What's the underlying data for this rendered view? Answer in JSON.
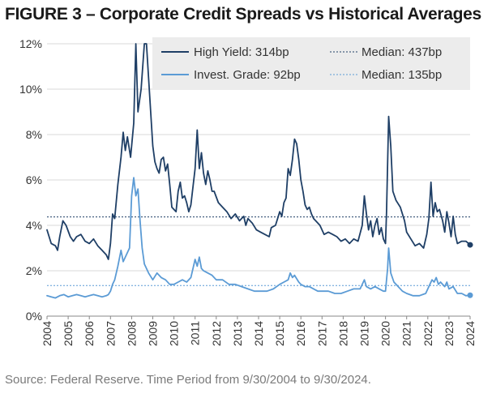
{
  "title": "FIGURE 3 – Corporate Credit Spreads vs Historical Averages",
  "source": "Source: Federal Reserve. Time Period from 9/30/2004 to 9/30/2024.",
  "chart_data": {
    "type": "line",
    "x_range": [
      2004,
      2024
    ],
    "ylim": [
      0,
      12
    ],
    "y_ticks": [
      "0%",
      "2%",
      "4%",
      "6%",
      "8%",
      "10%",
      "12%"
    ],
    "x_ticks": [
      "2004",
      "2005",
      "2006",
      "2007",
      "2008",
      "2009",
      "2010",
      "2011",
      "2012",
      "2013",
      "2014",
      "2015",
      "2016",
      "2017",
      "2018",
      "2019",
      "2020",
      "2021",
      "2022",
      "2023",
      "2024"
    ],
    "legend": {
      "high_yield": "High Yield: 314bp",
      "hy_median": "Median: 437bp",
      "invest_grade": "Invest. Grade: 92bp",
      "ig_median": "Median: 135bp"
    },
    "colors": {
      "high_yield": "#1f3f66",
      "invest_grade": "#5b9bd5",
      "legend_bg": "#ececec"
    },
    "medians": {
      "high_yield": 4.37,
      "invest_grade": 1.35
    },
    "series": [
      {
        "name": "High Yield",
        "points": [
          [
            2004.0,
            3.8
          ],
          [
            2004.2,
            3.2
          ],
          [
            2004.4,
            3.1
          ],
          [
            2004.5,
            2.9
          ],
          [
            2004.6,
            3.5
          ],
          [
            2004.75,
            4.2
          ],
          [
            2004.9,
            4.0
          ],
          [
            2005.1,
            3.5
          ],
          [
            2005.25,
            3.3
          ],
          [
            2005.4,
            3.5
          ],
          [
            2005.6,
            3.6
          ],
          [
            2005.8,
            3.3
          ],
          [
            2006.0,
            3.2
          ],
          [
            2006.2,
            3.4
          ],
          [
            2006.4,
            3.1
          ],
          [
            2006.6,
            2.9
          ],
          [
            2006.8,
            2.7
          ],
          [
            2006.9,
            2.5
          ],
          [
            2007.0,
            3.2
          ],
          [
            2007.1,
            4.5
          ],
          [
            2007.2,
            4.3
          ],
          [
            2007.35,
            5.8
          ],
          [
            2007.5,
            7.0
          ],
          [
            2007.6,
            8.1
          ],
          [
            2007.7,
            7.3
          ],
          [
            2007.8,
            7.9
          ],
          [
            2007.95,
            7.0
          ],
          [
            2008.1,
            8.5
          ],
          [
            2008.2,
            12.0
          ],
          [
            2008.3,
            9.0
          ],
          [
            2008.45,
            10.0
          ],
          [
            2008.6,
            12.0
          ],
          [
            2008.7,
            12.0
          ],
          [
            2008.8,
            10.5
          ],
          [
            2008.9,
            9.0
          ],
          [
            2009.0,
            7.5
          ],
          [
            2009.1,
            6.8
          ],
          [
            2009.2,
            6.5
          ],
          [
            2009.3,
            6.3
          ],
          [
            2009.4,
            6.9
          ],
          [
            2009.5,
            7.0
          ],
          [
            2009.6,
            6.4
          ],
          [
            2009.7,
            6.7
          ],
          [
            2009.8,
            5.8
          ],
          [
            2009.9,
            4.8
          ],
          [
            2010.0,
            4.7
          ],
          [
            2010.1,
            4.6
          ],
          [
            2010.2,
            5.5
          ],
          [
            2010.3,
            5.9
          ],
          [
            2010.4,
            5.2
          ],
          [
            2010.5,
            5.3
          ],
          [
            2010.6,
            5.0
          ],
          [
            2010.7,
            4.6
          ],
          [
            2010.8,
            4.9
          ],
          [
            2011.0,
            6.5
          ],
          [
            2011.1,
            8.2
          ],
          [
            2011.2,
            6.5
          ],
          [
            2011.3,
            7.2
          ],
          [
            2011.4,
            6.3
          ],
          [
            2011.5,
            5.8
          ],
          [
            2011.6,
            6.4
          ],
          [
            2011.7,
            6.0
          ],
          [
            2011.8,
            5.5
          ],
          [
            2011.9,
            5.5
          ],
          [
            2012.1,
            5.0
          ],
          [
            2012.3,
            4.8
          ],
          [
            2012.5,
            4.6
          ],
          [
            2012.7,
            4.3
          ],
          [
            2012.9,
            4.5
          ],
          [
            2013.1,
            4.2
          ],
          [
            2013.3,
            4.4
          ],
          [
            2013.4,
            4.0
          ],
          [
            2013.5,
            4.3
          ],
          [
            2013.7,
            4.1
          ],
          [
            2013.9,
            3.8
          ],
          [
            2014.1,
            3.7
          ],
          [
            2014.3,
            3.6
          ],
          [
            2014.5,
            3.5
          ],
          [
            2014.6,
            3.9
          ],
          [
            2014.8,
            4.0
          ],
          [
            2015.0,
            4.6
          ],
          [
            2015.1,
            4.4
          ],
          [
            2015.2,
            5.0
          ],
          [
            2015.3,
            5.2
          ],
          [
            2015.4,
            6.5
          ],
          [
            2015.5,
            6.2
          ],
          [
            2015.6,
            6.9
          ],
          [
            2015.7,
            7.8
          ],
          [
            2015.8,
            7.6
          ],
          [
            2015.9,
            6.9
          ],
          [
            2016.0,
            6.0
          ],
          [
            2016.1,
            5.5
          ],
          [
            2016.2,
            4.9
          ],
          [
            2016.3,
            4.7
          ],
          [
            2016.4,
            4.8
          ],
          [
            2016.5,
            4.5
          ],
          [
            2016.6,
            4.3
          ],
          [
            2016.7,
            4.2
          ],
          [
            2016.9,
            4.0
          ],
          [
            2017.1,
            3.6
          ],
          [
            2017.3,
            3.7
          ],
          [
            2017.5,
            3.6
          ],
          [
            2017.7,
            3.5
          ],
          [
            2017.9,
            3.3
          ],
          [
            2018.1,
            3.4
          ],
          [
            2018.3,
            3.2
          ],
          [
            2018.5,
            3.4
          ],
          [
            2018.7,
            3.3
          ],
          [
            2018.9,
            4.0
          ],
          [
            2019.0,
            5.3
          ],
          [
            2019.1,
            4.5
          ],
          [
            2019.2,
            3.8
          ],
          [
            2019.3,
            4.2
          ],
          [
            2019.4,
            3.5
          ],
          [
            2019.5,
            4.0
          ],
          [
            2019.6,
            4.3
          ],
          [
            2019.7,
            3.6
          ],
          [
            2019.8,
            3.9
          ],
          [
            2019.9,
            3.4
          ],
          [
            2020.0,
            3.2
          ],
          [
            2020.05,
            4.6
          ],
          [
            2020.15,
            8.8
          ],
          [
            2020.25,
            7.5
          ],
          [
            2020.35,
            5.5
          ],
          [
            2020.5,
            5.1
          ],
          [
            2020.7,
            4.8
          ],
          [
            2020.9,
            4.2
          ],
          [
            2021.0,
            3.7
          ],
          [
            2021.2,
            3.4
          ],
          [
            2021.4,
            3.1
          ],
          [
            2021.6,
            3.2
          ],
          [
            2021.8,
            3.0
          ],
          [
            2021.95,
            3.6
          ],
          [
            2022.05,
            4.3
          ],
          [
            2022.15,
            5.9
          ],
          [
            2022.25,
            4.4
          ],
          [
            2022.35,
            5.0
          ],
          [
            2022.45,
            4.6
          ],
          [
            2022.55,
            4.7
          ],
          [
            2022.7,
            4.2
          ],
          [
            2022.8,
            3.7
          ],
          [
            2022.9,
            4.6
          ],
          [
            2023.0,
            4.1
          ],
          [
            2023.1,
            3.5
          ],
          [
            2023.2,
            4.4
          ],
          [
            2023.3,
            3.6
          ],
          [
            2023.4,
            3.2
          ],
          [
            2023.6,
            3.3
          ],
          [
            2023.8,
            3.3
          ],
          [
            2024.0,
            3.14
          ]
        ]
      },
      {
        "name": "Invest. Grade",
        "points": [
          [
            2004.0,
            0.9
          ],
          [
            2004.2,
            0.85
          ],
          [
            2004.4,
            0.8
          ],
          [
            2004.6,
            0.9
          ],
          [
            2004.8,
            0.95
          ],
          [
            2005.0,
            0.85
          ],
          [
            2005.2,
            0.9
          ],
          [
            2005.4,
            0.95
          ],
          [
            2005.6,
            0.9
          ],
          [
            2005.8,
            0.85
          ],
          [
            2006.0,
            0.9
          ],
          [
            2006.2,
            0.95
          ],
          [
            2006.4,
            0.9
          ],
          [
            2006.6,
            0.85
          ],
          [
            2006.8,
            0.9
          ],
          [
            2006.9,
            0.95
          ],
          [
            2007.0,
            1.1
          ],
          [
            2007.1,
            1.4
          ],
          [
            2007.2,
            1.6
          ],
          [
            2007.35,
            2.2
          ],
          [
            2007.5,
            2.9
          ],
          [
            2007.6,
            2.4
          ],
          [
            2007.75,
            2.7
          ],
          [
            2007.9,
            3.0
          ],
          [
            2008.0,
            5.3
          ],
          [
            2008.1,
            6.1
          ],
          [
            2008.2,
            5.3
          ],
          [
            2008.3,
            5.6
          ],
          [
            2008.4,
            4.2
          ],
          [
            2008.5,
            3.0
          ],
          [
            2008.6,
            2.3
          ],
          [
            2008.8,
            1.9
          ],
          [
            2009.0,
            1.6
          ],
          [
            2009.2,
            1.9
          ],
          [
            2009.4,
            1.7
          ],
          [
            2009.6,
            1.6
          ],
          [
            2009.8,
            1.4
          ],
          [
            2010.0,
            1.4
          ],
          [
            2010.2,
            1.5
          ],
          [
            2010.4,
            1.6
          ],
          [
            2010.6,
            1.5
          ],
          [
            2010.8,
            1.7
          ],
          [
            2011.0,
            2.5
          ],
          [
            2011.1,
            2.2
          ],
          [
            2011.2,
            2.6
          ],
          [
            2011.3,
            2.1
          ],
          [
            2011.4,
            2.0
          ],
          [
            2011.6,
            1.9
          ],
          [
            2011.8,
            1.8
          ],
          [
            2012.0,
            1.6
          ],
          [
            2012.3,
            1.6
          ],
          [
            2012.6,
            1.4
          ],
          [
            2012.9,
            1.4
          ],
          [
            2013.2,
            1.3
          ],
          [
            2013.5,
            1.2
          ],
          [
            2013.8,
            1.1
          ],
          [
            2014.1,
            1.1
          ],
          [
            2014.4,
            1.1
          ],
          [
            2014.7,
            1.2
          ],
          [
            2015.0,
            1.4
          ],
          [
            2015.2,
            1.5
          ],
          [
            2015.4,
            1.6
          ],
          [
            2015.5,
            1.9
          ],
          [
            2015.6,
            1.7
          ],
          [
            2015.7,
            1.8
          ],
          [
            2015.9,
            1.5
          ],
          [
            2016.0,
            1.4
          ],
          [
            2016.2,
            1.3
          ],
          [
            2016.4,
            1.3
          ],
          [
            2016.6,
            1.2
          ],
          [
            2016.8,
            1.1
          ],
          [
            2017.0,
            1.1
          ],
          [
            2017.3,
            1.1
          ],
          [
            2017.6,
            1.0
          ],
          [
            2017.9,
            1.0
          ],
          [
            2018.2,
            1.1
          ],
          [
            2018.5,
            1.2
          ],
          [
            2018.8,
            1.2
          ],
          [
            2019.0,
            1.6
          ],
          [
            2019.1,
            1.3
          ],
          [
            2019.3,
            1.2
          ],
          [
            2019.5,
            1.3
          ],
          [
            2019.7,
            1.2
          ],
          [
            2019.9,
            1.1
          ],
          [
            2020.0,
            1.1
          ],
          [
            2020.1,
            2.1
          ],
          [
            2020.15,
            3.0
          ],
          [
            2020.25,
            1.9
          ],
          [
            2020.4,
            1.5
          ],
          [
            2020.6,
            1.3
          ],
          [
            2020.8,
            1.1
          ],
          [
            2021.0,
            1.0
          ],
          [
            2021.3,
            0.9
          ],
          [
            2021.6,
            0.9
          ],
          [
            2021.9,
            1.0
          ],
          [
            2022.0,
            1.2
          ],
          [
            2022.1,
            1.4
          ],
          [
            2022.2,
            1.6
          ],
          [
            2022.3,
            1.5
          ],
          [
            2022.4,
            1.7
          ],
          [
            2022.5,
            1.4
          ],
          [
            2022.6,
            1.5
          ],
          [
            2022.8,
            1.3
          ],
          [
            2022.9,
            1.5
          ],
          [
            2023.0,
            1.2
          ],
          [
            2023.2,
            1.3
          ],
          [
            2023.4,
            1.0
          ],
          [
            2023.6,
            1.0
          ],
          [
            2023.8,
            0.9
          ],
          [
            2024.0,
            0.92
          ]
        ]
      }
    ]
  }
}
